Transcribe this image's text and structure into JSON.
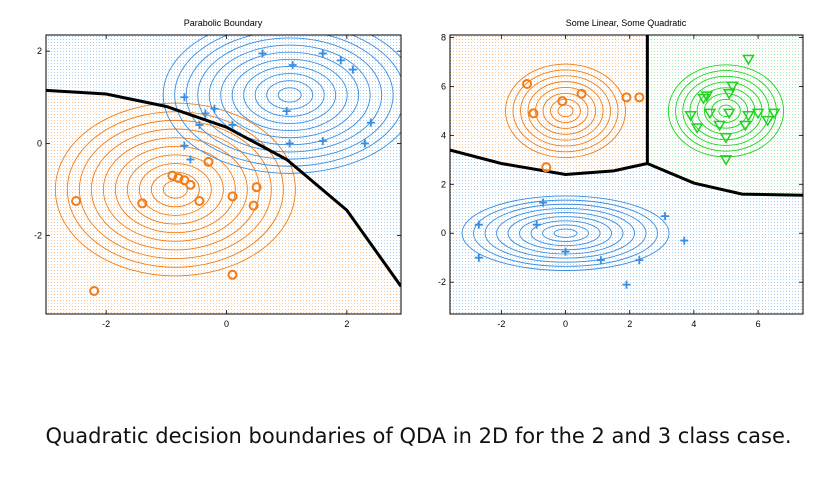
{
  "caption": "Quadratic decision boundaries of QDA in 2D for the 2 and 3 class case.",
  "colors": {
    "orange": "#f07d1a",
    "blue": "#3a8ee0",
    "green": "#1fd21f",
    "boundary": "#000000"
  },
  "chart_data": [
    {
      "type": "scatter",
      "title": "Parabolic Boundary",
      "xlabel": "",
      "ylabel": "",
      "xlim": [
        -3.0,
        2.9
      ],
      "ylim": [
        -3.7,
        2.35
      ],
      "xticks": [
        -2,
        0,
        2
      ],
      "yticks": [
        -2,
        0,
        2
      ],
      "grid": false,
      "classes": [
        {
          "marker": "circle",
          "color": "orange",
          "points": [
            [
              -2.5,
              -1.25
            ],
            [
              -2.2,
              -3.2
            ],
            [
              -1.4,
              -1.3
            ],
            [
              -0.9,
              -0.7
            ],
            [
              -0.8,
              -0.75
            ],
            [
              -0.7,
              -0.8
            ],
            [
              -0.6,
              -0.9
            ],
            [
              -0.3,
              -0.4
            ],
            [
              -0.45,
              -1.25
            ],
            [
              0.1,
              -1.15
            ],
            [
              0.45,
              -1.35
            ],
            [
              0.5,
              -0.95
            ],
            [
              0.1,
              -2.85
            ]
          ]
        },
        {
          "marker": "plus",
          "color": "blue",
          "points": [
            [
              -0.7,
              1.0
            ],
            [
              -0.35,
              0.65
            ],
            [
              -0.2,
              0.75
            ],
            [
              0.1,
              0.4
            ],
            [
              -0.7,
              -0.05
            ],
            [
              -0.6,
              -0.35
            ],
            [
              -0.45,
              0.4
            ],
            [
              0.6,
              1.95
            ],
            [
              1.1,
              1.7
            ],
            [
              1.6,
              1.95
            ],
            [
              1.9,
              1.8
            ],
            [
              2.1,
              1.6
            ],
            [
              1.0,
              0.7
            ],
            [
              1.05,
              0.0
            ],
            [
              1.6,
              0.05
            ],
            [
              2.3,
              0.0
            ],
            [
              2.4,
              0.45
            ]
          ]
        }
      ],
      "contours": [
        {
          "color": "orange",
          "center": [
            -0.85,
            -1.0
          ],
          "levels": 10
        },
        {
          "color": "blue",
          "center": [
            1.05,
            1.05
          ],
          "levels": 11
        }
      ],
      "decision_boundary": [
        [
          -3.0,
          1.15
        ],
        [
          -2.0,
          1.07
        ],
        [
          -1.0,
          0.8
        ],
        [
          0.0,
          0.35
        ],
        [
          1.0,
          -0.35
        ],
        [
          2.0,
          -1.45
        ],
        [
          2.9,
          -3.1
        ]
      ]
    },
    {
      "type": "scatter",
      "title": "Some Linear, Some Quadratic",
      "xlabel": "",
      "ylabel": "",
      "xlim": [
        -3.6,
        7.4
      ],
      "ylim": [
        -3.3,
        8.1
      ],
      "xticks": [
        -2,
        0,
        2,
        4,
        6
      ],
      "yticks": [
        -2,
        0,
        2,
        4,
        6,
        8
      ],
      "grid": false,
      "classes": [
        {
          "marker": "circle",
          "color": "orange",
          "points": [
            [
              -1.2,
              6.1
            ],
            [
              -1.0,
              4.9
            ],
            [
              -0.1,
              5.4
            ],
            [
              0.5,
              5.7
            ],
            [
              1.9,
              5.55
            ],
            [
              2.3,
              5.55
            ],
            [
              -0.6,
              2.7
            ]
          ]
        },
        {
          "marker": "plus",
          "color": "blue",
          "points": [
            [
              -2.7,
              0.35
            ],
            [
              -2.7,
              -1.0
            ],
            [
              -0.7,
              1.25
            ],
            [
              -0.9,
              0.35
            ],
            [
              0.0,
              -0.75
            ],
            [
              1.1,
              -1.1
            ],
            [
              2.3,
              -1.1
            ],
            [
              3.1,
              0.7
            ],
            [
              3.7,
              -0.3
            ],
            [
              1.9,
              -2.1
            ]
          ]
        },
        {
          "marker": "triangle",
          "color": "green",
          "points": [
            [
              4.3,
              5.5
            ],
            [
              4.4,
              5.6
            ],
            [
              4.5,
              4.9
            ],
            [
              3.9,
              4.8
            ],
            [
              4.1,
              4.3
            ],
            [
              4.8,
              4.4
            ],
            [
              5.1,
              5.7
            ],
            [
              5.2,
              6.0
            ],
            [
              5.1,
              4.9
            ],
            [
              5.0,
              3.9
            ],
            [
              5.7,
              4.8
            ],
            [
              6.0,
              4.9
            ],
            [
              6.3,
              4.6
            ],
            [
              6.5,
              4.9
            ],
            [
              5.6,
              4.4
            ],
            [
              5.0,
              3.0
            ],
            [
              5.7,
              7.1
            ]
          ]
        }
      ],
      "contours": [
        {
          "color": "orange",
          "center": [
            0.0,
            5.0
          ],
          "levels": 8
        },
        {
          "color": "blue",
          "center": [
            0.0,
            0.0
          ],
          "levels": 9
        },
        {
          "color": "green",
          "center": [
            5.0,
            5.0
          ],
          "levels": 8
        }
      ],
      "decision_boundary": [
        [
          [
            -3.6,
            3.4
          ],
          [
            -2.0,
            2.85
          ],
          [
            0.0,
            2.4
          ],
          [
            1.5,
            2.55
          ],
          [
            2.55,
            2.85
          ]
        ],
        [
          [
            2.55,
            8.1
          ],
          [
            2.55,
            2.85
          ]
        ],
        [
          [
            2.55,
            2.85
          ],
          [
            4.0,
            2.05
          ],
          [
            5.5,
            1.6
          ],
          [
            7.4,
            1.55
          ]
        ]
      ]
    }
  ]
}
